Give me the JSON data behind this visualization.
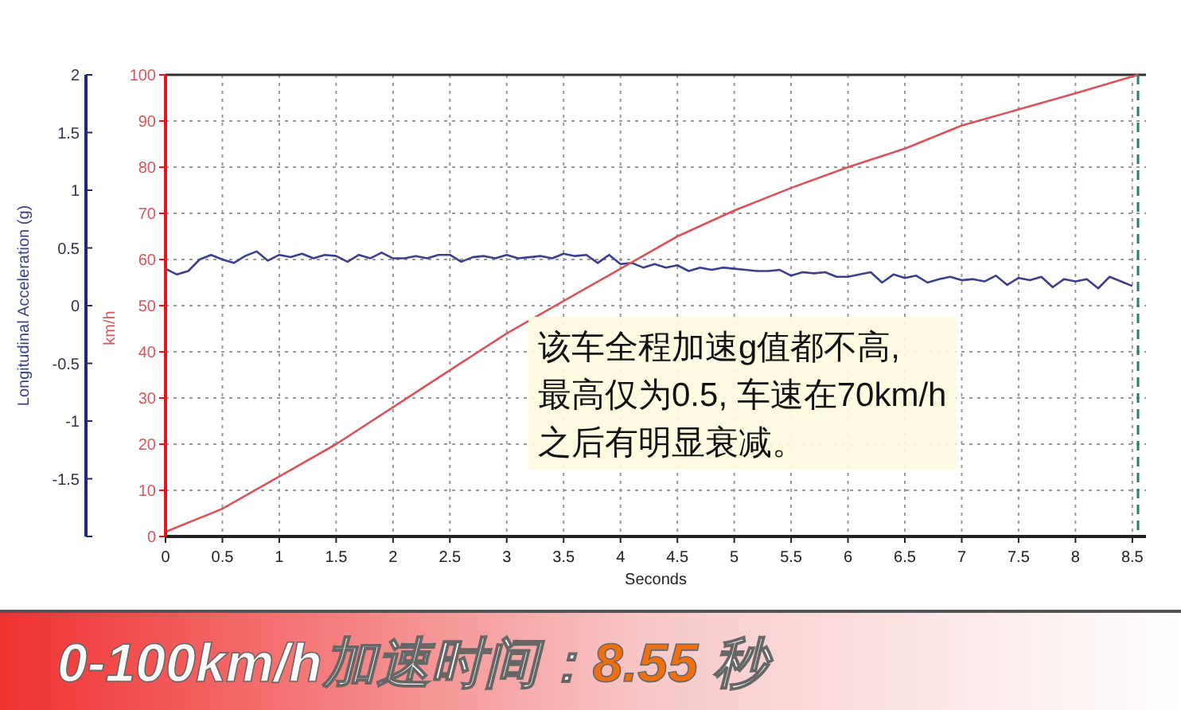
{
  "chart_data": {
    "type": "line",
    "title": "0-100km/h加速时间：8.55 秒",
    "xlabel": "Seconds",
    "ylabel": "km/h",
    "y2label": "Longitudinal Acceleration (g)",
    "xlim": [
      0,
      8.62
    ],
    "xticks": [
      0,
      0.5,
      1,
      1.5,
      2,
      2.5,
      3,
      3.5,
      4,
      4.5,
      5,
      5.5,
      6,
      6.5,
      7,
      7.5,
      8,
      8.5
    ],
    "y2lim": [
      -2,
      2
    ],
    "y2ticks": [
      {
        "value": -2,
        "label": null
      },
      -1.5,
      -1,
      -0.5,
      0,
      0.5,
      1,
      1.5,
      2
    ],
    "ylim": [
      0,
      100
    ],
    "yticks": [
      0,
      10,
      20,
      30,
      40,
      50,
      60,
      70,
      80,
      90,
      100
    ],
    "grid": true,
    "marker": "none",
    "line_style": "solid",
    "series": [
      {
        "color": "#3b3f8c",
        "axis": "y2",
        "x": [
          0,
          0.1,
          0.2,
          0.3,
          0.4,
          0.5,
          0.6,
          0.7,
          0.8,
          0.9,
          1,
          1.1,
          1.2,
          1.3,
          1.4,
          1.5,
          1.6,
          1.7,
          1.8,
          1.9,
          2,
          2.1,
          2.2,
          2.3,
          2.4,
          2.5,
          2.6,
          2.7,
          2.8,
          2.9,
          3,
          3.1,
          3.2,
          3.3,
          3.4,
          3.5,
          3.6,
          3.7,
          3.8,
          3.9,
          4,
          4.1,
          4.2,
          4.3,
          4.4,
          4.5,
          4.6,
          4.7,
          4.8,
          4.9,
          5,
          5.1,
          5.2,
          5.3,
          5.4,
          5.5,
          5.6,
          5.7,
          5.8,
          5.9,
          6,
          6.1,
          6.2,
          6.3,
          6.4,
          6.5,
          6.6,
          6.7,
          6.8,
          6.9,
          7,
          7.1,
          7.2,
          7.3,
          7.4,
          7.5,
          7.6,
          7.7,
          7.8,
          7.9,
          8,
          8.1,
          8.2,
          8.3,
          8.4,
          8.5
        ],
        "values": [
          0.32,
          0.27,
          0.3,
          0.4,
          0.44,
          0.4,
          0.37,
          0.43,
          0.47,
          0.39,
          0.44,
          0.42,
          0.45,
          0.41,
          0.44,
          0.43,
          0.38,
          0.44,
          0.41,
          0.46,
          0.41,
          0.41,
          0.43,
          0.41,
          0.44,
          0.44,
          0.38,
          0.42,
          0.43,
          0.41,
          0.44,
          0.41,
          0.42,
          0.43,
          0.41,
          0.45,
          0.43,
          0.44,
          0.37,
          0.44,
          0.36,
          0.37,
          0.33,
          0.36,
          0.33,
          0.35,
          0.3,
          0.33,
          0.31,
          0.33,
          0.32,
          0.31,
          0.3,
          0.3,
          0.31,
          0.26,
          0.29,
          0.28,
          0.29,
          0.25,
          0.25,
          0.27,
          0.29,
          0.2,
          0.27,
          0.24,
          0.26,
          0.2,
          0.23,
          0.25,
          0.22,
          0.23,
          0.21,
          0.26,
          0.18,
          0.24,
          0.22,
          0.25,
          0.16,
          0.23,
          0.21,
          0.23,
          0.15,
          0.25,
          0.21,
          0.17
        ]
      },
      {
        "color": "#d9535a",
        "x": [
          0,
          0.5,
          1,
          1.5,
          2,
          2.5,
          3,
          3.5,
          4,
          4.5,
          5,
          5.5,
          6,
          6.5,
          7,
          7.5,
          8,
          8.55
        ],
        "values": [
          1,
          6,
          13,
          20,
          28,
          36,
          44,
          51,
          58,
          65,
          70.6,
          75.5,
          80,
          84,
          89,
          92.5,
          96,
          100
        ]
      }
    ],
    "ref_lines": [
      {
        "axis": "x",
        "value": 8.55,
        "color": "#2e7d5b",
        "line_style": "dashed"
      }
    ],
    "annotations": [
      "该车全程加速g值都不高,\n最高仅为0.5, 车速在70km/h\n之后有明显衰减。"
    ]
  }
}
